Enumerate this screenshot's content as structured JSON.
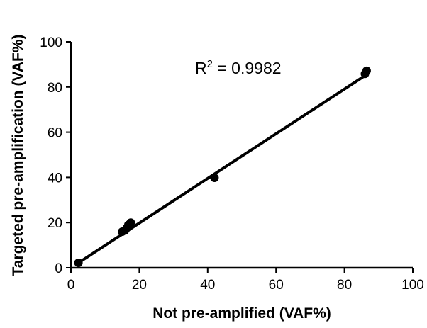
{
  "chart_data": {
    "type": "scatter",
    "xlabel": "Not pre-amplified (VAF%)",
    "ylabel": "Targeted pre-amplification (VAF%)",
    "xlim": [
      0,
      100
    ],
    "ylim": [
      0,
      100
    ],
    "xticks": [
      "0",
      "20",
      "40",
      "60",
      "80",
      "100"
    ],
    "yticks": [
      "0",
      "20",
      "40",
      "60",
      "80",
      "100"
    ],
    "grid": false,
    "annotation": {
      "base": "R",
      "superscript": "2",
      "rest": " = 0.9982"
    },
    "points": [
      {
        "x": 2.2,
        "y": 2.2
      },
      {
        "x": 15.0,
        "y": 16.0
      },
      {
        "x": 15.8,
        "y": 16.5
      },
      {
        "x": 16.3,
        "y": 17.5
      },
      {
        "x": 16.8,
        "y": 19.0
      },
      {
        "x": 17.5,
        "y": 20.0
      },
      {
        "x": 42.0,
        "y": 39.8
      },
      {
        "x": 86.0,
        "y": 85.8
      },
      {
        "x": 86.5,
        "y": 87.2
      }
    ],
    "regression": {
      "x": [
        2,
        86.5
      ],
      "y": [
        2,
        85.5
      ]
    },
    "colors": {
      "marker": "#000000",
      "line": "#000000",
      "axis": "#000000"
    }
  }
}
